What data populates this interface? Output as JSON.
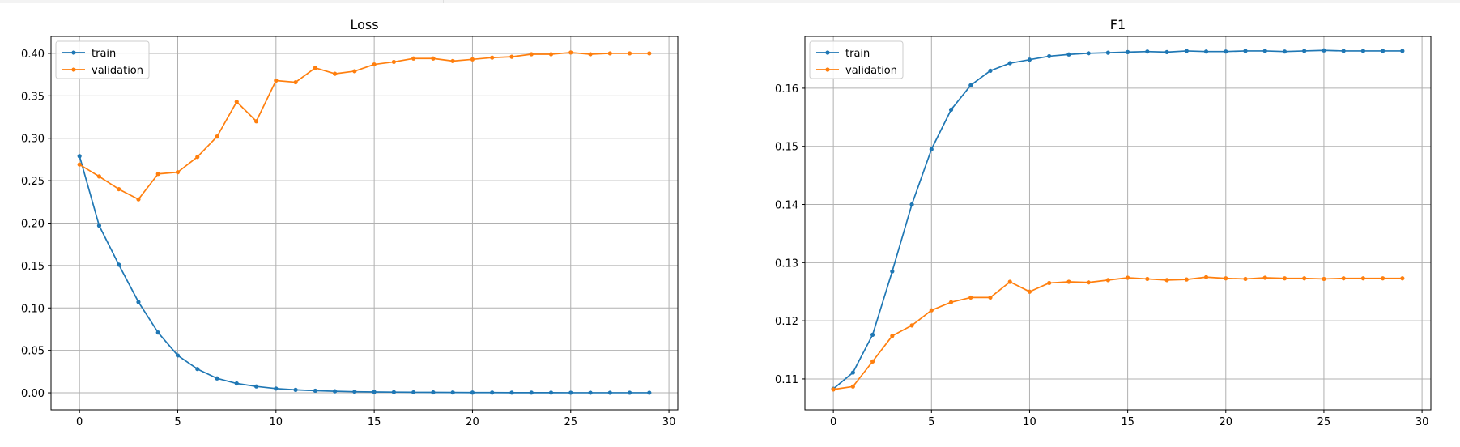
{
  "chart_data": [
    {
      "type": "line",
      "title": "Loss",
      "xlabel": "",
      "ylabel": "",
      "xlim": [
        -1.45,
        30.45
      ],
      "ylim": [
        -0.02,
        0.42
      ],
      "xticks": [
        0,
        5,
        10,
        15,
        20,
        25,
        30
      ],
      "yticks": [
        0.0,
        0.05,
        0.1,
        0.15,
        0.2,
        0.25,
        0.3,
        0.35,
        0.4
      ],
      "ytick_labels": [
        "0.00",
        "0.05",
        "0.10",
        "0.15",
        "0.20",
        "0.25",
        "0.30",
        "0.35",
        "0.40"
      ],
      "grid": true,
      "legend": "upper-left",
      "x": [
        0,
        1,
        2,
        3,
        4,
        5,
        6,
        7,
        8,
        9,
        10,
        11,
        12,
        13,
        14,
        15,
        16,
        17,
        18,
        19,
        20,
        21,
        22,
        23,
        24,
        25,
        26,
        27,
        28,
        29
      ],
      "series": [
        {
          "name": "train",
          "color": "#1f77b4",
          "values": [
            0.279,
            0.197,
            0.151,
            0.107,
            0.071,
            0.044,
            0.028,
            0.017,
            0.011,
            0.0075,
            0.005,
            0.0035,
            0.0025,
            0.0018,
            0.0013,
            0.001,
            0.0008,
            0.0006,
            0.0005,
            0.0004,
            0.0003,
            0.0003,
            0.0002,
            0.0002,
            0.0002,
            0.0001,
            0.0001,
            0.0001,
            0.0001,
            0.0001
          ]
        },
        {
          "name": "validation",
          "color": "#ff7f0e",
          "values": [
            0.269,
            0.255,
            0.24,
            0.228,
            0.258,
            0.26,
            0.278,
            0.302,
            0.343,
            0.32,
            0.368,
            0.366,
            0.383,
            0.376,
            0.379,
            0.387,
            0.39,
            0.394,
            0.394,
            0.391,
            0.393,
            0.395,
            0.396,
            0.399,
            0.399,
            0.401,
            0.399,
            0.4,
            0.4,
            0.4
          ]
        }
      ]
    },
    {
      "type": "line",
      "title": "F1",
      "xlabel": "",
      "ylabel": "",
      "xlim": [
        -1.45,
        30.45
      ],
      "ylim": [
        0.1047,
        0.1689
      ],
      "xticks": [
        0,
        5,
        10,
        15,
        20,
        25,
        30
      ],
      "yticks": [
        0.11,
        0.12,
        0.13,
        0.14,
        0.15,
        0.16
      ],
      "ytick_labels": [
        "0.11",
        "0.12",
        "0.13",
        "0.14",
        "0.15",
        "0.16"
      ],
      "grid": true,
      "legend": "upper-left",
      "x": [
        0,
        1,
        2,
        3,
        4,
        5,
        6,
        7,
        8,
        9,
        10,
        11,
        12,
        13,
        14,
        15,
        16,
        17,
        18,
        19,
        20,
        21,
        22,
        23,
        24,
        25,
        26,
        27,
        28,
        29
      ],
      "series": [
        {
          "name": "train",
          "color": "#1f77b4",
          "values": [
            0.1083,
            0.1111,
            0.1176,
            0.1285,
            0.14,
            0.1495,
            0.1563,
            0.1605,
            0.163,
            0.1643,
            0.1649,
            0.1655,
            0.1658,
            0.166,
            0.1661,
            0.1662,
            0.1663,
            0.1662,
            0.1664,
            0.1663,
            0.1663,
            0.1664,
            0.1664,
            0.1663,
            0.1664,
            0.1665,
            0.1664,
            0.1664,
            0.1664,
            0.1664
          ]
        },
        {
          "name": "validation",
          "color": "#ff7f0e",
          "values": [
            0.1082,
            0.1087,
            0.113,
            0.1174,
            0.1192,
            0.1218,
            0.1232,
            0.124,
            0.124,
            0.1267,
            0.125,
            0.1265,
            0.1267,
            0.1266,
            0.127,
            0.1274,
            0.1272,
            0.127,
            0.1271,
            0.1275,
            0.1273,
            0.1272,
            0.1274,
            0.1273,
            0.1273,
            0.1272,
            0.1273,
            0.1273,
            0.1273,
            0.1273
          ]
        }
      ]
    }
  ]
}
